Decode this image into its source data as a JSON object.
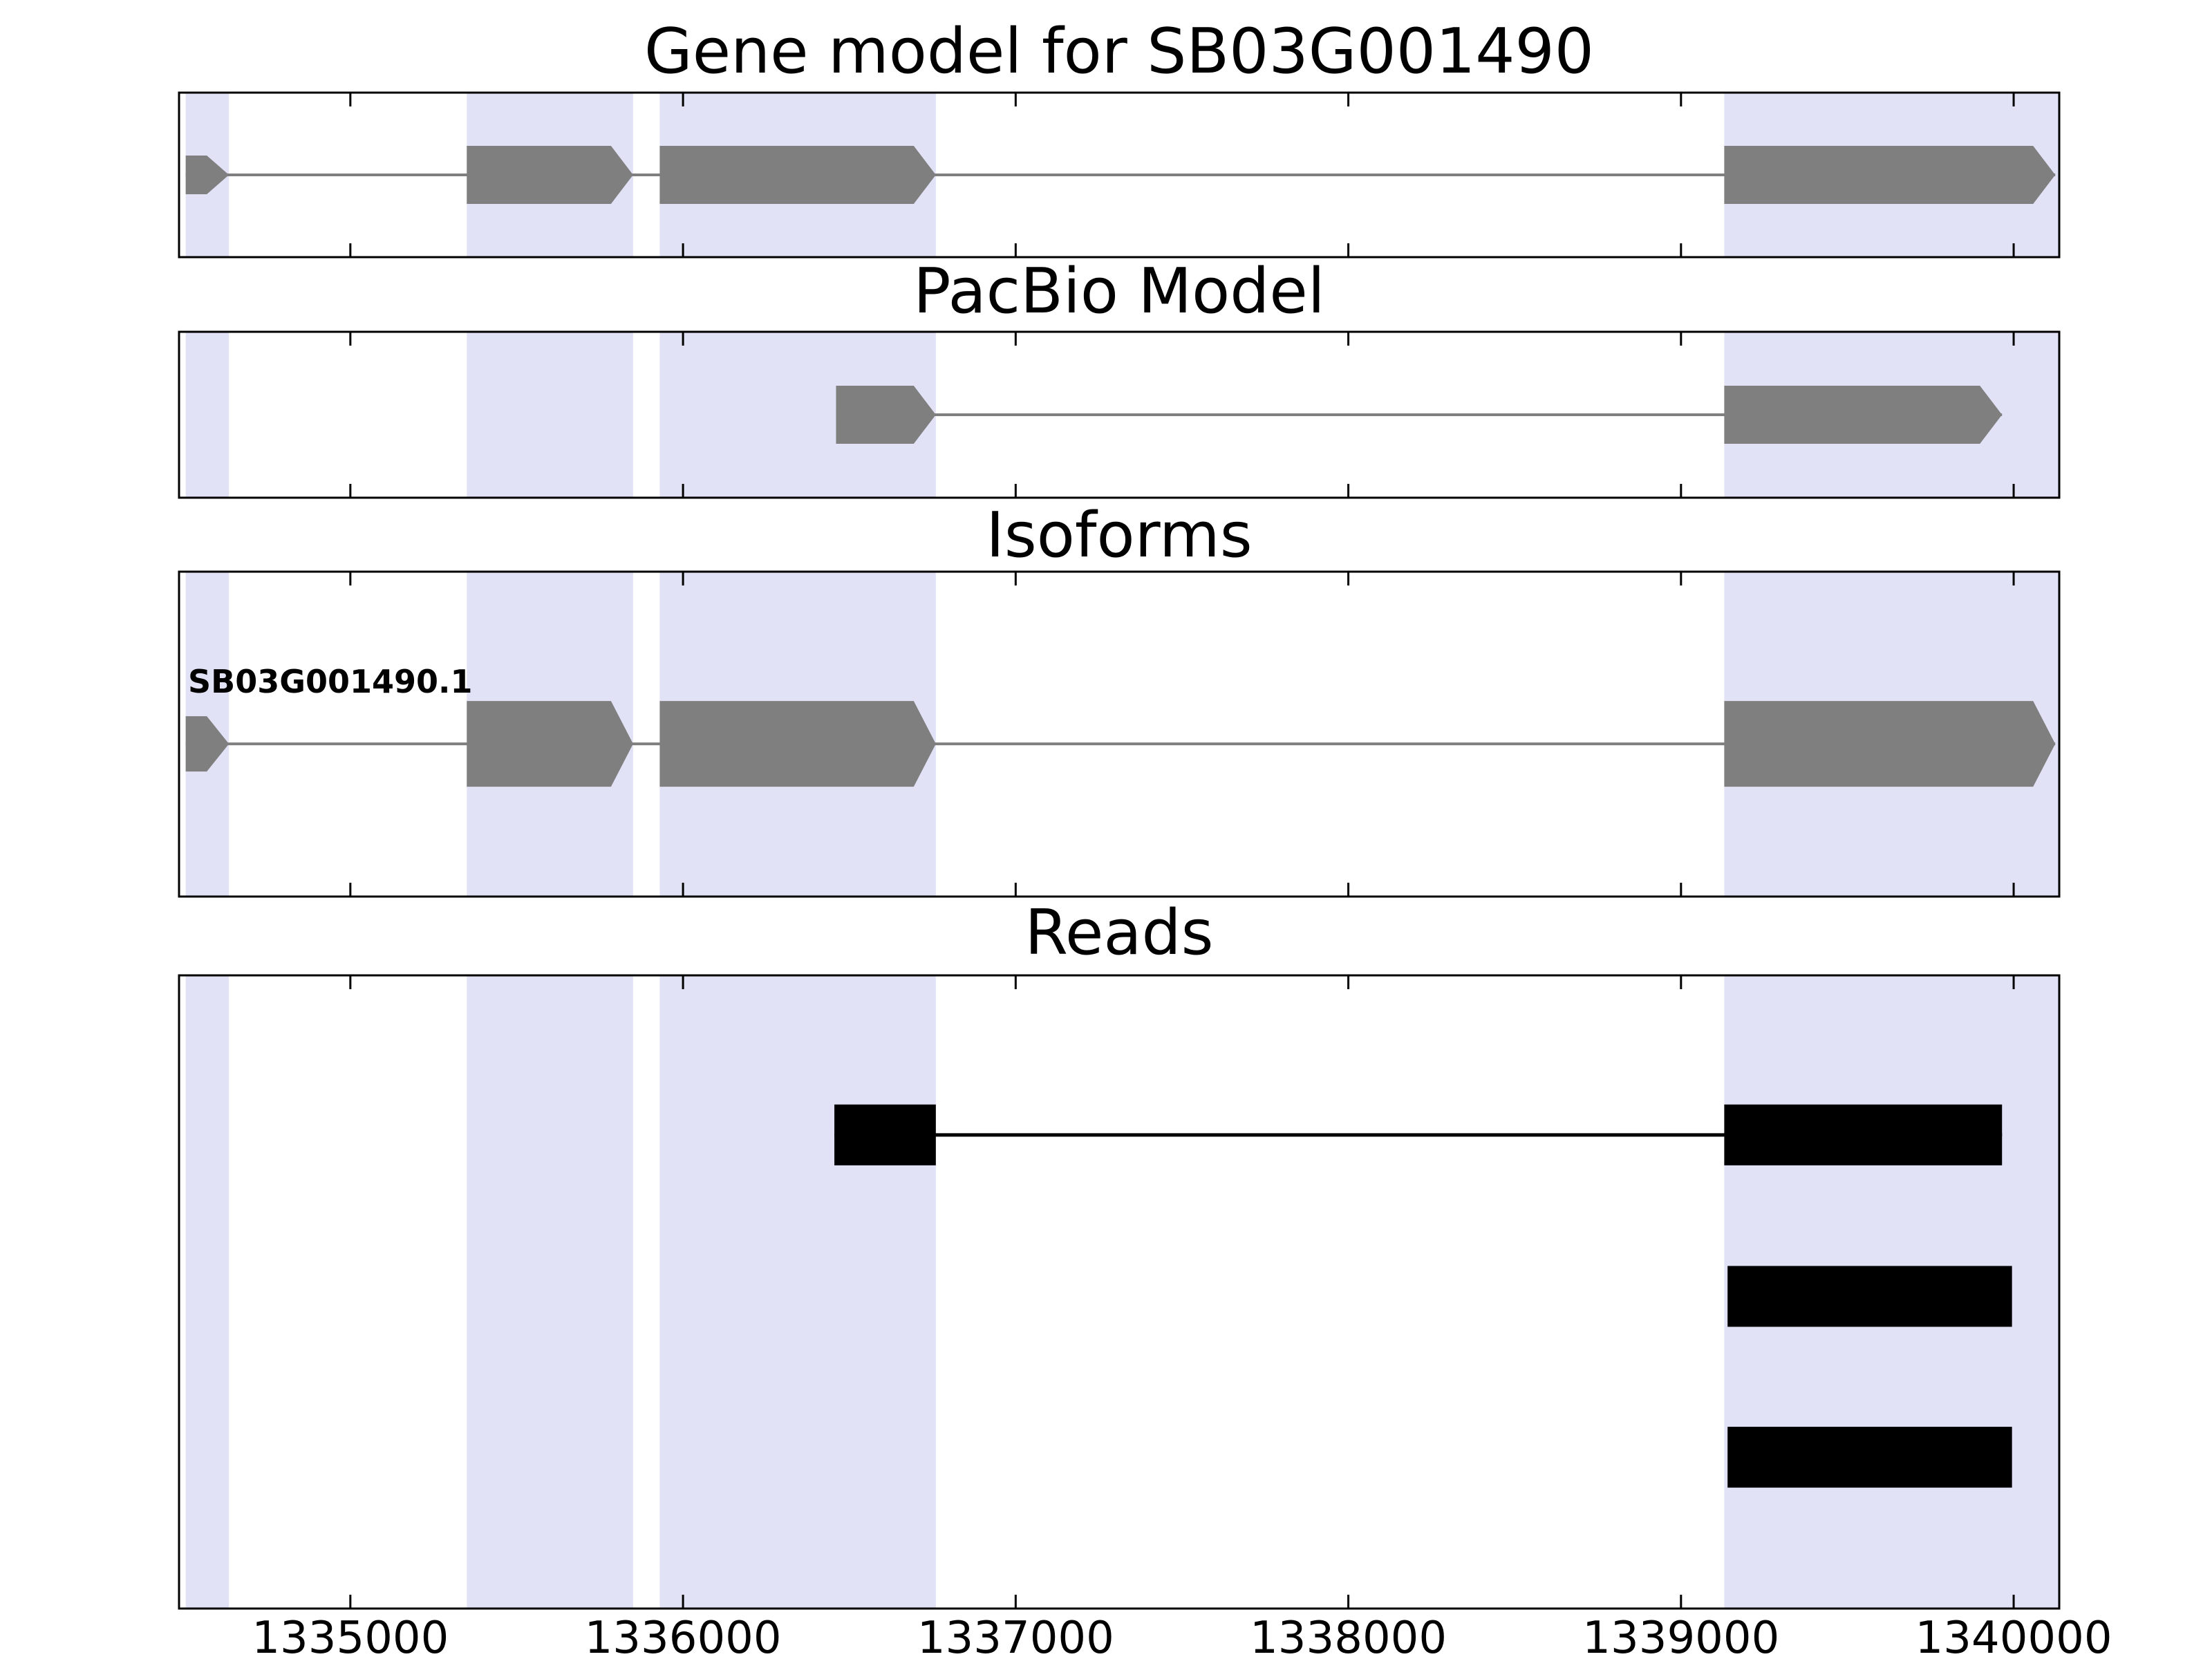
{
  "chart_data": {
    "type": "gene-structure-tracks",
    "xlim": [
      1334485,
      1340137
    ],
    "xticks": [
      1335000,
      1336000,
      1337000,
      1338000,
      1339000,
      1340000
    ],
    "xtick_labels": [
      "1335000",
      "1336000",
      "1337000",
      "1338000",
      "1339000",
      "1340000"
    ],
    "highlight_regions": [
      [
        1334505,
        1334635
      ],
      [
        1335350,
        1335850
      ],
      [
        1335930,
        1336760
      ],
      [
        1339130,
        1340140
      ]
    ],
    "colors": {
      "highlight": "#e2e2f6",
      "gene": "#7f7f7f",
      "read": "#000000",
      "border": "#000000",
      "background": "#ffffff"
    },
    "panels": [
      {
        "title": "Gene model for SB03G001490",
        "features": [
          {
            "name": "gene-model-feature",
            "style": "arrow",
            "color": "#7f7f7f",
            "line_width": 4,
            "exons": [
              [
                1334505,
                1334635
              ],
              [
                1335350,
                1335850
              ],
              [
                1335930,
                1336760
              ],
              [
                1339130,
                1340125
              ]
            ],
            "exon_heights": [
              56,
              84,
              84,
              84
            ]
          }
        ]
      },
      {
        "title": "PacBio Model",
        "features": [
          {
            "name": "pacbio-model-feature",
            "style": "arrow",
            "color": "#7f7f7f",
            "line_width": 4,
            "exons": [
              [
                1336460,
                1336760
              ],
              [
                1339130,
                1339965
              ]
            ],
            "exon_heights": [
              84,
              84
            ]
          }
        ]
      },
      {
        "title": "Isoforms",
        "features": [
          {
            "name": "isoform-feature",
            "label": "SB03G001490.1",
            "style": "arrow",
            "color": "#7f7f7f",
            "line_width": 4,
            "exons": [
              [
                1334505,
                1334635
              ],
              [
                1335350,
                1335850
              ],
              [
                1335930,
                1336760
              ],
              [
                1339130,
                1340125
              ]
            ],
            "exon_heights": [
              80,
              124,
              124,
              124
            ]
          }
        ]
      },
      {
        "title": "Reads",
        "features": [
          {
            "name": "read-1",
            "style": "rect",
            "color": "#000000",
            "line_width": 5,
            "exons": [
              [
                1336455,
                1336760
              ],
              [
                1339130,
                1339965
              ]
            ],
            "exon_heights": [
              88,
              88
            ]
          },
          {
            "name": "read-2",
            "style": "rect",
            "color": "#000000",
            "line_width": 5,
            "exons": [
              [
                1339140,
                1339995
              ]
            ],
            "exon_heights": [
              88
            ]
          },
          {
            "name": "read-3",
            "style": "rect",
            "color": "#000000",
            "line_width": 5,
            "exons": [
              [
                1339140,
                1339995
              ]
            ],
            "exon_heights": [
              88
            ]
          }
        ]
      }
    ]
  }
}
